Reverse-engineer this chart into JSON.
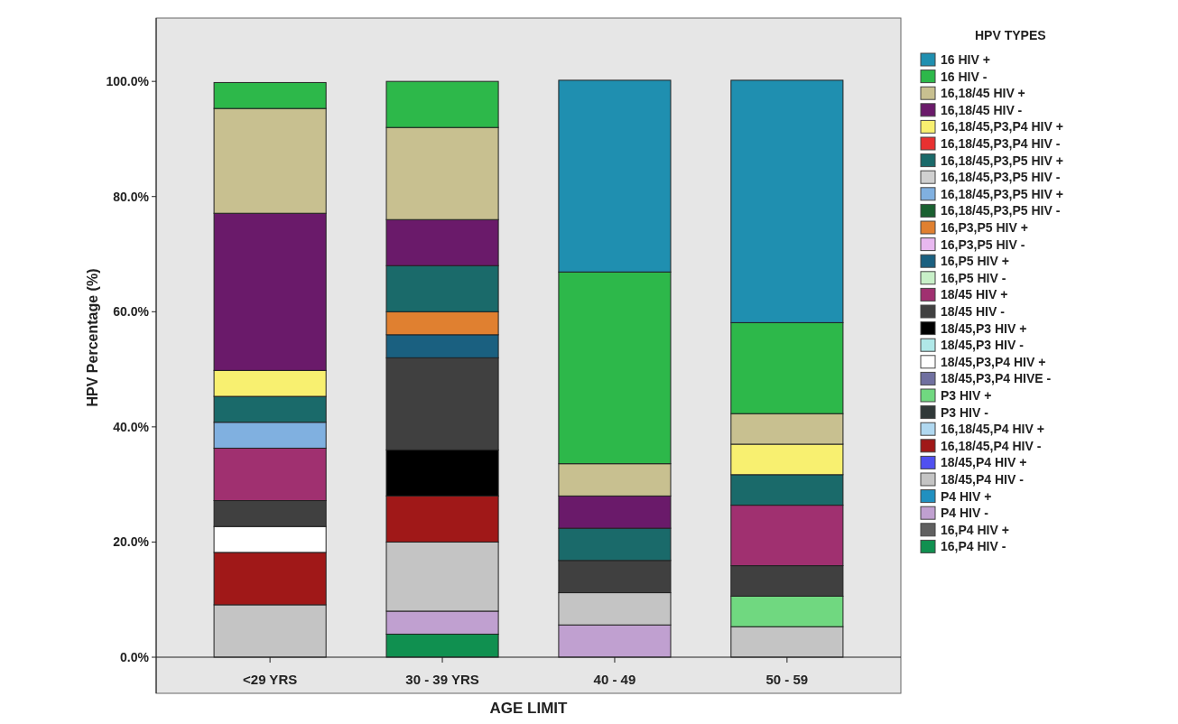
{
  "chart_data": {
    "type": "bar",
    "stacked": true,
    "xlabel": "AGE LIMIT",
    "ylabel": "HPV Percentage (%)",
    "legend_title": "HPV TYPES",
    "legend": "right",
    "grid": false,
    "categories": [
      "<29 YRS",
      "30 - 39 YRS",
      "40 - 49",
      "50 - 59"
    ],
    "ylim": [
      0,
      111
    ],
    "yticks": [
      {
        "value": 0,
        "label": "0.0%"
      },
      {
        "value": 20,
        "label": "20.0%"
      },
      {
        "value": 40,
        "label": "40.0%"
      },
      {
        "value": 60,
        "label": "60.0%"
      },
      {
        "value": 80,
        "label": "80.0%"
      },
      {
        "value": 100,
        "label": "100.0%"
      }
    ],
    "series": [
      {
        "name": "16,P4 HIV -",
        "color": "#109050",
        "values": [
          null,
          4,
          null,
          null
        ]
      },
      {
        "name": "16,P4 HIV +",
        "color": "#606060",
        "values": [
          null,
          null,
          null,
          null
        ]
      },
      {
        "name": "P4 HIV -",
        "color": "#c0a0d0",
        "values": [
          null,
          4,
          5.6,
          null
        ]
      },
      {
        "name": "P4 HIV +",
        "color": "#2090c0",
        "values": [
          null,
          null,
          null,
          null
        ]
      },
      {
        "name": "18/45,P4 HIV -",
        "color": "#c4c4c4",
        "values": [
          9.1,
          12,
          5.6,
          5.3
        ]
      },
      {
        "name": "18/45,P4 HIV +",
        "color": "#5050f0",
        "values": [
          null,
          null,
          null,
          null
        ]
      },
      {
        "name": "16,18/45,P4 HIV -",
        "color": "#a01818",
        "values": [
          9.1,
          8,
          null,
          null
        ]
      },
      {
        "name": "16,18/45,P4 HIV +",
        "color": "#b0d8f0",
        "values": [
          null,
          null,
          null,
          null
        ]
      },
      {
        "name": "P3 HIV -",
        "color": "#303838",
        "values": [
          null,
          null,
          null,
          null
        ]
      },
      {
        "name": "P3 HIV +",
        "color": "#70d880",
        "values": [
          null,
          null,
          null,
          5.3
        ]
      },
      {
        "name": "18/45,P3,P4 HIVE -",
        "color": "#7070a0",
        "values": [
          null,
          null,
          null,
          null
        ]
      },
      {
        "name": "18/45,P3,P4 HIV +",
        "color": "#ffffff",
        "values": [
          4.5,
          null,
          null,
          null
        ]
      },
      {
        "name": "18/45,P3 HIV -",
        "color": "#b0e8e8",
        "values": [
          null,
          null,
          null,
          null
        ]
      },
      {
        "name": "18/45,P3 HIV +",
        "color": "#000000",
        "values": [
          null,
          8,
          null,
          null
        ]
      },
      {
        "name": "18/45 HIV -",
        "color": "#404040",
        "values": [
          4.5,
          16,
          5.6,
          5.3
        ]
      },
      {
        "name": "18/45 HIV +",
        "color": "#a03070",
        "values": [
          9.1,
          null,
          null,
          10.5
        ]
      },
      {
        "name": "16,P5 HIV -",
        "color": "#c8f0c8",
        "values": [
          null,
          null,
          null,
          null
        ]
      },
      {
        "name": "16,P5 HIV +",
        "color": "#1a6080",
        "values": [
          null,
          4,
          null,
          null
        ]
      },
      {
        "name": "16,P3,P5 HIV -",
        "color": "#e8b8f0",
        "values": [
          null,
          null,
          null,
          null
        ]
      },
      {
        "name": "16,P3,P5 HIV +",
        "color": "#e08030",
        "values": [
          null,
          4,
          null,
          null
        ]
      },
      {
        "name": "16,18/45,P3,P5 HIV -",
        "color": "#1a6030",
        "values": [
          null,
          null,
          null,
          null
        ]
      },
      {
        "name": "16,18/45,P3,P5 HIV +",
        "color": "#80b0e0",
        "values": [
          4.5,
          null,
          null,
          null
        ]
      },
      {
        "name": "16,18/45,P3,P5 HIV -",
        "color": "#d0d0d0",
        "values": [
          null,
          null,
          null,
          null
        ]
      },
      {
        "name": "16,18/45,P3,P5 HIV +",
        "color": "#1a6a6a",
        "values": [
          4.5,
          8,
          5.6,
          5.3
        ]
      },
      {
        "name": "16,18/45,P3,P4 HIV -",
        "color": "#e83030",
        "values": [
          null,
          null,
          null,
          null
        ]
      },
      {
        "name": "16,18/45,P3,P4 HIV +",
        "color": "#f8f070",
        "values": [
          4.5,
          null,
          null,
          5.3
        ]
      },
      {
        "name": "16,18/45 HIV -",
        "color": "#6a1a6a",
        "values": [
          27.3,
          8,
          5.6,
          null
        ]
      },
      {
        "name": "16,18/45 HIV +",
        "color": "#c8c090",
        "values": [
          18.2,
          16,
          5.6,
          5.3
        ]
      },
      {
        "name": "16 HIV -",
        "color": "#2db84a",
        "values": [
          4.5,
          8,
          33.3,
          15.8
        ]
      },
      {
        "name": "16 HIV +",
        "color": "#1f8fb0",
        "values": [
          null,
          null,
          33.3,
          42.1
        ]
      }
    ]
  }
}
